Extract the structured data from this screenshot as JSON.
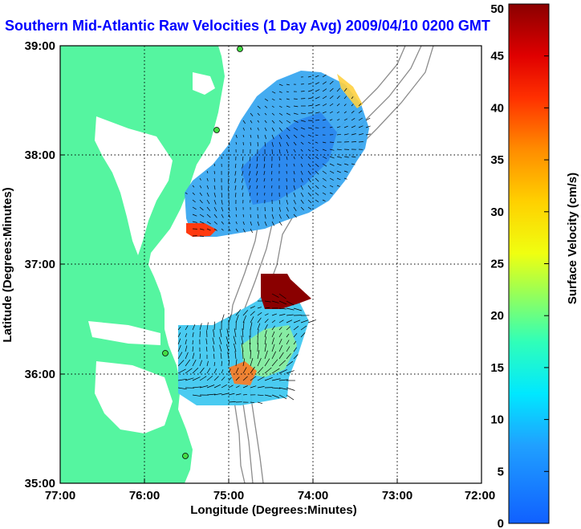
{
  "title": "Southern Mid-Atlantic Raw Velocities (1 Day Avg) 2009/04/10 0200 GMT",
  "map": {
    "x_axis": {
      "label": "Longitude (Degrees:Minutes)",
      "ticks": [
        "77:00",
        "76:00",
        "75:00",
        "74:00",
        "73:00",
        "72:00"
      ]
    },
    "y_axis": {
      "label": "Latitude (Degrees:Minutes)",
      "ticks": [
        "39:00",
        "38:00",
        "37:00",
        "36:00",
        "35:00"
      ]
    },
    "colorbar": {
      "label": "Surface Velocity (cm/s)",
      "ticks": [
        "50",
        "45",
        "40",
        "35",
        "30",
        "25",
        "20",
        "15",
        "10",
        "5",
        "0"
      ],
      "min": 0,
      "max": 50
    },
    "colors": {
      "land": "#55f5a0",
      "ocean": "#ffffff",
      "bathymetry": "#8c8c8c",
      "title": "#0000ff"
    }
  }
}
